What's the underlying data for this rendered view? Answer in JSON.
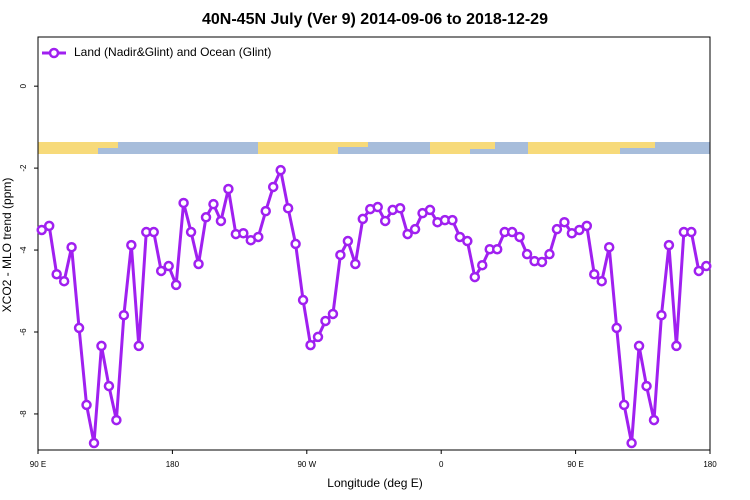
{
  "chart_data": {
    "type": "line",
    "title": "40N-45N July (Ver 9)   2014-09-06 to 2018-12-29",
    "x_label": "Longitude (deg E)",
    "y_label": "XCO2 - MLO trend (ppm)",
    "x": [
      92.5,
      97.5,
      102.5,
      107.5,
      112.5,
      117.5,
      122.5,
      127.5,
      132.5,
      137.5,
      142.5,
      147.5,
      152.5,
      157.5,
      162.5,
      167.5,
      172.5,
      177.5,
      182.5,
      187.5,
      192.5,
      197.5,
      202.5,
      207.5,
      212.5,
      217.5,
      222.5,
      227.5,
      232.5,
      237.5,
      242.5,
      247.5,
      252.5,
      257.5,
      262.5,
      267.5,
      272.5,
      277.5,
      282.5,
      287.5,
      292.5,
      297.5,
      302.5,
      307.5,
      312.5,
      317.5,
      322.5,
      327.5,
      332.5,
      337.5,
      342.5,
      347.5,
      352.5,
      357.5,
      362.5,
      367.5,
      372.5,
      377.5,
      382.5,
      387.5,
      392.5,
      397.5,
      402.5,
      407.5,
      412.5,
      417.5,
      422.5,
      427.5,
      432.5,
      437.5,
      442.5,
      447.5,
      452.5,
      457.5,
      462.5,
      467.5,
      472.5,
      477.5,
      482.5,
      487.5,
      492.5,
      497.5,
      502.5,
      507.5,
      512.5,
      517.5,
      522.5,
      527.5,
      532.5,
      537.5
    ],
    "series": [
      {
        "name": "Land (Nadir&Glint) and Ocean (Glint)",
        "color": "#a020f0",
        "values": [
          -3.51,
          -3.41,
          -4.59,
          -4.76,
          -3.93,
          -5.9,
          -7.78,
          -8.71,
          -6.34,
          -7.32,
          -8.15,
          -5.59,
          -3.88,
          -6.34,
          -3.56,
          -3.56,
          -4.51,
          -4.39,
          -4.85,
          -2.85,
          -3.56,
          -4.34,
          -3.2,
          -2.88,
          -3.29,
          -2.51,
          -3.61,
          -3.59,
          -3.76,
          -3.68,
          -3.05,
          -2.46,
          -2.05,
          -2.98,
          -3.85,
          -5.22,
          -6.32,
          -6.12,
          -5.73,
          -5.56,
          -4.12,
          -3.78,
          -4.34,
          -3.24,
          -3.0,
          -2.95,
          -3.29,
          -3.02,
          -2.98,
          -3.61,
          -3.49,
          -3.1,
          -3.02,
          -3.32,
          -3.27,
          -3.27,
          -3.68,
          -3.78,
          -4.66,
          -4.37,
          -3.98,
          -3.98,
          -3.56,
          -3.56,
          -3.68,
          -4.1,
          -4.27,
          -4.29,
          -4.1,
          -3.49,
          -3.32,
          -3.59,
          -3.51,
          -3.41,
          -4.59,
          -4.76,
          -3.93,
          -5.9,
          -7.78,
          -8.71,
          -6.34,
          -7.32,
          -8.15,
          -5.59,
          -3.88,
          -6.34,
          -3.56,
          -3.56,
          -4.51,
          -4.39
        ]
      }
    ],
    "xlim": [
      90,
      540
    ],
    "xticks": [
      {
        "value": 90,
        "label": "90 E"
      },
      180,
      {
        "value": 270,
        "label": "90 W"
      },
      {
        "value": 360,
        "label": "0"
      },
      {
        "value": 450,
        "label": "90 E"
      },
      {
        "value": 540,
        "label": "180"
      }
    ],
    "ylim": [
      -8.88,
      1.2
    ],
    "yticks": [
      0,
      -2,
      -4,
      -6,
      -8
    ],
    "legend": "top-left"
  }
}
